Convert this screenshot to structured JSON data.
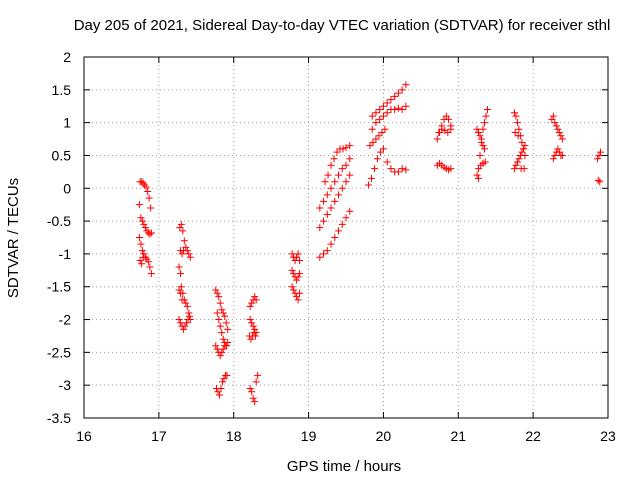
{
  "chart_data": {
    "type": "scatter",
    "title": "Day 205 of 2021, Sidereal Day-to-day VTEC variation (SDTVAR) for receiver sthl",
    "xlabel": "GPS time / hours",
    "ylabel": "SDTVAR / TECUs",
    "xlim": [
      16,
      23
    ],
    "ylim": [
      -3.5,
      2
    ],
    "xticks": [
      "16",
      "17",
      "18",
      "19",
      "20",
      "21",
      "22",
      "23"
    ],
    "yticks": [
      "-3.5",
      "-3",
      "-2.5",
      "-2",
      "-1.5",
      "-1",
      "-0.5",
      "0",
      "0.5",
      "1",
      "1.5",
      "2"
    ],
    "grid": true,
    "marker": "plus",
    "color": "#ff0000",
    "series": [
      {
        "name": "sthl",
        "points": [
          [
            16.75,
            0.1
          ],
          [
            16.77,
            0.1
          ],
          [
            16.79,
            0.08
          ],
          [
            16.81,
            0.05
          ],
          [
            16.83,
            0.02
          ],
          [
            16.85,
            -0.05
          ],
          [
            16.87,
            -0.15
          ],
          [
            16.89,
            -0.3
          ],
          [
            16.74,
            -0.25
          ],
          [
            16.76,
            -0.45
          ],
          [
            16.78,
            -0.5
          ],
          [
            16.8,
            -0.55
          ],
          [
            16.82,
            -0.6
          ],
          [
            16.84,
            -0.65
          ],
          [
            16.86,
            -0.68
          ],
          [
            16.88,
            -0.7
          ],
          [
            16.9,
            -0.68
          ],
          [
            16.74,
            -0.75
          ],
          [
            16.76,
            -0.85
          ],
          [
            16.78,
            -0.95
          ],
          [
            16.8,
            -1.0
          ],
          [
            16.82,
            -1.05
          ],
          [
            16.84,
            -1.08
          ],
          [
            16.86,
            -1.12
          ],
          [
            16.88,
            -1.2
          ],
          [
            16.9,
            -1.3
          ],
          [
            16.75,
            -1.1
          ],
          [
            16.77,
            -1.15
          ],
          [
            16.79,
            -1.05
          ],
          [
            17.28,
            -0.6
          ],
          [
            17.3,
            -0.55
          ],
          [
            17.32,
            -0.65
          ],
          [
            17.34,
            -0.8
          ],
          [
            17.36,
            -0.9
          ],
          [
            17.38,
            -0.95
          ],
          [
            17.4,
            -1.0
          ],
          [
            17.42,
            -1.05
          ],
          [
            17.29,
            -0.95
          ],
          [
            17.31,
            -1.0
          ],
          [
            17.33,
            -0.95
          ],
          [
            17.27,
            -1.2
          ],
          [
            17.29,
            -1.3
          ],
          [
            17.3,
            -1.5
          ],
          [
            17.32,
            -1.6
          ],
          [
            17.34,
            -1.7
          ],
          [
            17.36,
            -1.75
          ],
          [
            17.38,
            -1.8
          ],
          [
            17.4,
            -1.9
          ],
          [
            17.42,
            -2.0
          ],
          [
            17.27,
            -1.55
          ],
          [
            17.29,
            -1.6
          ],
          [
            17.31,
            -1.7
          ],
          [
            17.27,
            -2.0
          ],
          [
            17.29,
            -2.05
          ],
          [
            17.31,
            -2.1
          ],
          [
            17.33,
            -2.15
          ],
          [
            17.35,
            -2.1
          ],
          [
            17.37,
            -2.05
          ],
          [
            17.39,
            -2.0
          ],
          [
            17.41,
            -1.95
          ],
          [
            17.76,
            -1.55
          ],
          [
            17.78,
            -1.6
          ],
          [
            17.8,
            -1.65
          ],
          [
            17.82,
            -1.75
          ],
          [
            17.84,
            -1.85
          ],
          [
            17.86,
            -1.9
          ],
          [
            17.88,
            -1.95
          ],
          [
            17.9,
            -2.05
          ],
          [
            17.92,
            -2.15
          ],
          [
            17.76,
            -2.4
          ],
          [
            17.78,
            -2.45
          ],
          [
            17.8,
            -2.5
          ],
          [
            17.82,
            -2.55
          ],
          [
            17.84,
            -2.5
          ],
          [
            17.86,
            -2.45
          ],
          [
            17.88,
            -2.4
          ],
          [
            17.9,
            -2.4
          ],
          [
            17.92,
            -2.35
          ],
          [
            17.78,
            -1.9
          ],
          [
            17.8,
            -2.0
          ],
          [
            17.82,
            -2.1
          ],
          [
            17.84,
            -2.2
          ],
          [
            17.86,
            -2.3
          ],
          [
            17.88,
            -2.35
          ],
          [
            17.9,
            -2.4
          ],
          [
            17.77,
            -3.05
          ],
          [
            17.79,
            -3.1
          ],
          [
            17.81,
            -3.15
          ],
          [
            17.83,
            -3.05
          ],
          [
            17.85,
            -2.95
          ],
          [
            17.87,
            -2.9
          ],
          [
            17.89,
            -2.85
          ],
          [
            17.91,
            -2.85
          ],
          [
            18.22,
            -1.8
          ],
          [
            18.24,
            -1.75
          ],
          [
            18.26,
            -1.7
          ],
          [
            18.28,
            -1.65
          ],
          [
            18.3,
            -1.7
          ],
          [
            18.22,
            -2.0
          ],
          [
            18.24,
            -2.05
          ],
          [
            18.26,
            -2.1
          ],
          [
            18.28,
            -2.15
          ],
          [
            18.3,
            -2.2
          ],
          [
            18.21,
            -2.25
          ],
          [
            18.23,
            -2.3
          ],
          [
            18.25,
            -2.25
          ],
          [
            18.27,
            -2.2
          ],
          [
            18.29,
            -2.25
          ],
          [
            18.22,
            -3.05
          ],
          [
            18.24,
            -3.1
          ],
          [
            18.26,
            -3.2
          ],
          [
            18.28,
            -3.25
          ],
          [
            18.3,
            -2.95
          ],
          [
            18.32,
            -2.85
          ],
          [
            18.78,
            -1.0
          ],
          [
            18.8,
            -1.05
          ],
          [
            18.82,
            -1.1
          ],
          [
            18.84,
            -1.05
          ],
          [
            18.86,
            -1.0
          ],
          [
            18.88,
            -1.1
          ],
          [
            18.78,
            -1.25
          ],
          [
            18.8,
            -1.3
          ],
          [
            18.82,
            -1.35
          ],
          [
            18.84,
            -1.4
          ],
          [
            18.86,
            -1.35
          ],
          [
            18.88,
            -1.3
          ],
          [
            18.78,
            -1.5
          ],
          [
            18.8,
            -1.55
          ],
          [
            18.82,
            -1.6
          ],
          [
            18.84,
            -1.65
          ],
          [
            18.86,
            -1.7
          ],
          [
            18.88,
            -1.6
          ],
          [
            19.15,
            -1.05
          ],
          [
            19.2,
            -1.0
          ],
          [
            19.25,
            -0.95
          ],
          [
            19.3,
            -0.85
          ],
          [
            19.35,
            -0.75
          ],
          [
            19.4,
            -0.65
          ],
          [
            19.45,
            -0.55
          ],
          [
            19.5,
            -0.45
          ],
          [
            19.55,
            -0.35
          ],
          [
            19.15,
            -0.6
          ],
          [
            19.2,
            -0.5
          ],
          [
            19.25,
            -0.4
          ],
          [
            19.3,
            -0.3
          ],
          [
            19.35,
            -0.2
          ],
          [
            19.4,
            -0.1
          ],
          [
            19.45,
            0.0
          ],
          [
            19.5,
            0.1
          ],
          [
            19.55,
            0.2
          ],
          [
            19.15,
            -0.3
          ],
          [
            19.2,
            -0.2
          ],
          [
            19.25,
            -0.1
          ],
          [
            19.3,
            0.0
          ],
          [
            19.35,
            0.1
          ],
          [
            19.4,
            0.2
          ],
          [
            19.45,
            0.3
          ],
          [
            19.5,
            0.35
          ],
          [
            19.55,
            0.45
          ],
          [
            19.22,
            0.1
          ],
          [
            19.26,
            0.2
          ],
          [
            19.3,
            0.35
          ],
          [
            19.34,
            0.45
          ],
          [
            19.38,
            0.55
          ],
          [
            19.42,
            0.6
          ],
          [
            19.46,
            0.6
          ],
          [
            19.5,
            0.62
          ],
          [
            19.55,
            0.65
          ],
          [
            19.8,
            0.05
          ],
          [
            19.84,
            0.15
          ],
          [
            19.88,
            0.3
          ],
          [
            19.92,
            0.45
          ],
          [
            19.96,
            0.55
          ],
          [
            20.0,
            0.6
          ],
          [
            20.05,
            0.4
          ],
          [
            20.1,
            0.3
          ],
          [
            20.15,
            0.25
          ],
          [
            20.2,
            0.25
          ],
          [
            20.25,
            0.3
          ],
          [
            20.3,
            0.28
          ],
          [
            19.82,
            0.65
          ],
          [
            19.86,
            0.7
          ],
          [
            19.9,
            0.75
          ],
          [
            19.94,
            0.8
          ],
          [
            19.98,
            0.85
          ],
          [
            20.02,
            0.9
          ],
          [
            19.85,
            0.9
          ],
          [
            19.9,
            1.0
          ],
          [
            19.95,
            1.05
          ],
          [
            20.0,
            1.1
          ],
          [
            20.05,
            1.15
          ],
          [
            20.1,
            1.2
          ],
          [
            20.15,
            1.2
          ],
          [
            20.2,
            1.22
          ],
          [
            20.25,
            1.2
          ],
          [
            20.3,
            1.25
          ],
          [
            19.85,
            1.1
          ],
          [
            19.9,
            1.15
          ],
          [
            19.95,
            1.2
          ],
          [
            20.0,
            1.25
          ],
          [
            20.05,
            1.3
          ],
          [
            20.1,
            1.35
          ],
          [
            20.15,
            1.4
          ],
          [
            20.2,
            1.45
          ],
          [
            20.25,
            1.5
          ],
          [
            20.3,
            1.58
          ],
          [
            20.72,
            0.75
          ],
          [
            20.75,
            0.85
          ],
          [
            20.78,
            0.95
          ],
          [
            20.81,
            1.05
          ],
          [
            20.84,
            1.1
          ],
          [
            20.87,
            1.05
          ],
          [
            20.9,
            0.95
          ],
          [
            20.72,
            0.35
          ],
          [
            20.75,
            0.38
          ],
          [
            20.78,
            0.35
          ],
          [
            20.81,
            0.32
          ],
          [
            20.84,
            0.3
          ],
          [
            20.87,
            0.28
          ],
          [
            20.9,
            0.3
          ],
          [
            20.74,
            0.85
          ],
          [
            20.78,
            0.9
          ],
          [
            20.82,
            0.88
          ],
          [
            20.86,
            0.85
          ],
          [
            20.9,
            0.9
          ],
          [
            21.25,
            0.2
          ],
          [
            21.27,
            0.3
          ],
          [
            21.29,
            0.5
          ],
          [
            21.31,
            0.7
          ],
          [
            21.33,
            0.9
          ],
          [
            21.35,
            1.0
          ],
          [
            21.37,
            1.1
          ],
          [
            21.39,
            1.2
          ],
          [
            21.25,
            0.9
          ],
          [
            21.27,
            0.85
          ],
          [
            21.29,
            0.8
          ],
          [
            21.31,
            0.75
          ],
          [
            21.33,
            0.65
          ],
          [
            21.35,
            0.6
          ],
          [
            21.27,
            0.15
          ],
          [
            21.3,
            0.35
          ],
          [
            21.33,
            0.38
          ],
          [
            21.36,
            0.4
          ],
          [
            21.75,
            1.15
          ],
          [
            21.77,
            1.1
          ],
          [
            21.79,
            1.0
          ],
          [
            21.81,
            0.9
          ],
          [
            21.83,
            0.8
          ],
          [
            21.85,
            0.7
          ],
          [
            21.87,
            0.6
          ],
          [
            21.89,
            0.5
          ],
          [
            21.75,
            0.3
          ],
          [
            21.77,
            0.35
          ],
          [
            21.79,
            0.4
          ],
          [
            21.81,
            0.45
          ],
          [
            21.83,
            0.5
          ],
          [
            21.85,
            0.55
          ],
          [
            21.87,
            0.6
          ],
          [
            21.89,
            0.65
          ],
          [
            21.76,
            0.85
          ],
          [
            21.8,
            0.8
          ],
          [
            21.84,
            0.3
          ],
          [
            21.88,
            0.3
          ],
          [
            22.25,
            1.05
          ],
          [
            22.27,
            1.1
          ],
          [
            22.29,
            1.0
          ],
          [
            22.31,
            0.95
          ],
          [
            22.33,
            0.9
          ],
          [
            22.35,
            0.85
          ],
          [
            22.37,
            0.8
          ],
          [
            22.39,
            0.75
          ],
          [
            22.27,
            0.45
          ],
          [
            22.29,
            0.5
          ],
          [
            22.31,
            0.55
          ],
          [
            22.33,
            0.6
          ],
          [
            22.35,
            0.55
          ],
          [
            22.37,
            0.5
          ],
          [
            22.39,
            0.5
          ],
          [
            22.86,
            0.45
          ],
          [
            22.88,
            0.5
          ],
          [
            22.9,
            0.55
          ],
          [
            22.87,
            0.12
          ],
          [
            22.89,
            0.1
          ]
        ]
      }
    ]
  }
}
